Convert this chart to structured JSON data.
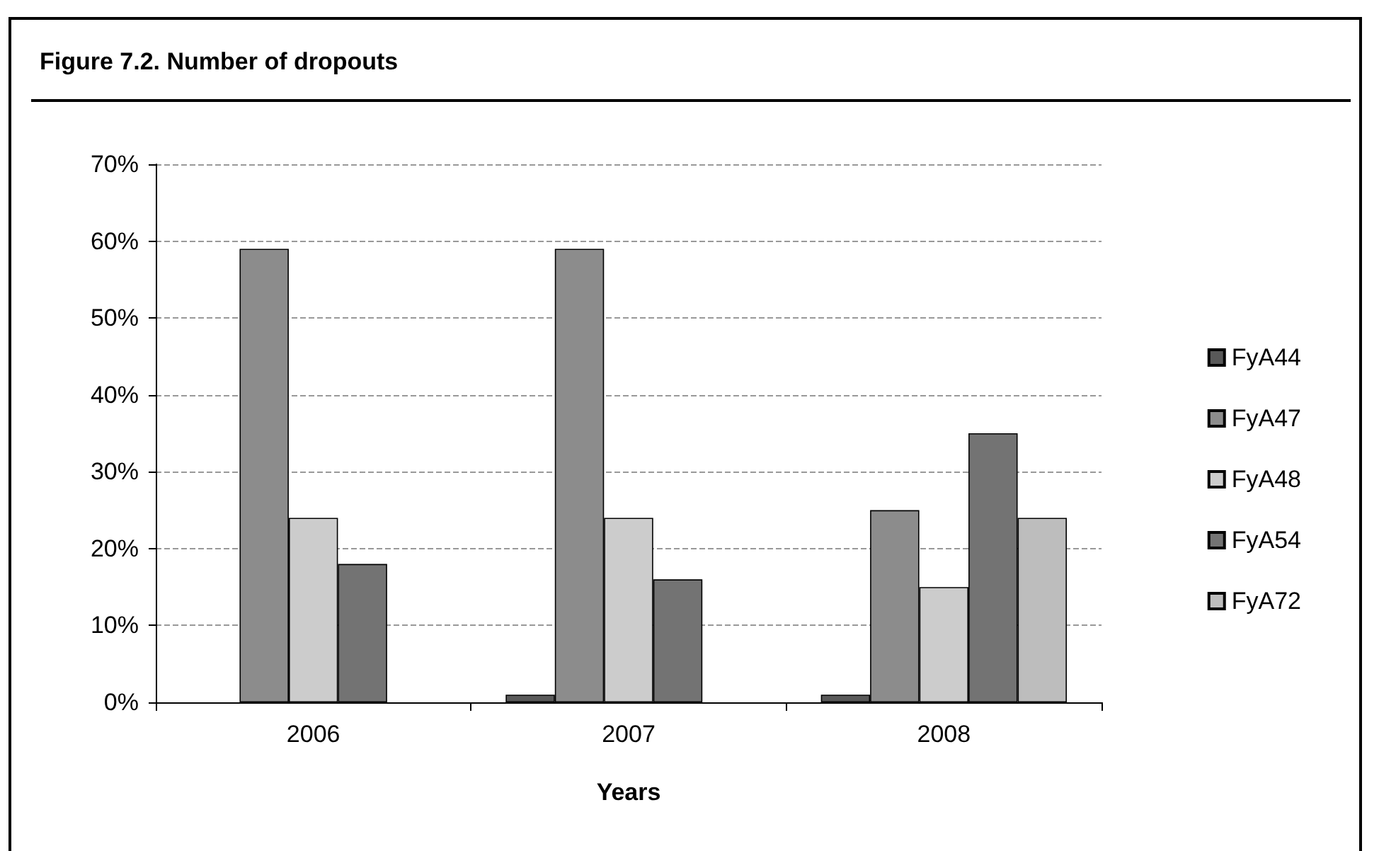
{
  "chart_data": {
    "type": "bar",
    "title": "Figure 7.2. Number of dropouts",
    "xlabel": "Years",
    "categories": [
      "2006",
      "2007",
      "2008"
    ],
    "series": [
      {
        "name": "FyA44",
        "color": "#595959",
        "values": [
          null,
          1,
          1
        ]
      },
      {
        "name": "FyA47",
        "color": "#8c8c8c",
        "values": [
          59,
          59,
          25
        ]
      },
      {
        "name": "FyA48",
        "color": "#cccccc",
        "values": [
          24,
          24,
          15
        ]
      },
      {
        "name": "FyA54",
        "color": "#737373",
        "values": [
          18,
          16,
          35
        ]
      },
      {
        "name": "FyA72",
        "color": "#bdbdbd",
        "values": [
          null,
          null,
          24
        ]
      }
    ],
    "ylim": [
      0,
      70
    ],
    "yticks": [
      {
        "value": 0,
        "label": "0%"
      },
      {
        "value": 10,
        "label": "10%"
      },
      {
        "value": 20,
        "label": "20%"
      },
      {
        "value": 30,
        "label": "30%"
      },
      {
        "value": 40,
        "label": "40%"
      },
      {
        "value": 50,
        "label": "50%"
      },
      {
        "value": 60,
        "label": "60%"
      },
      {
        "value": 70,
        "label": "70%"
      }
    ],
    "grid": "y",
    "legend": "right"
  }
}
